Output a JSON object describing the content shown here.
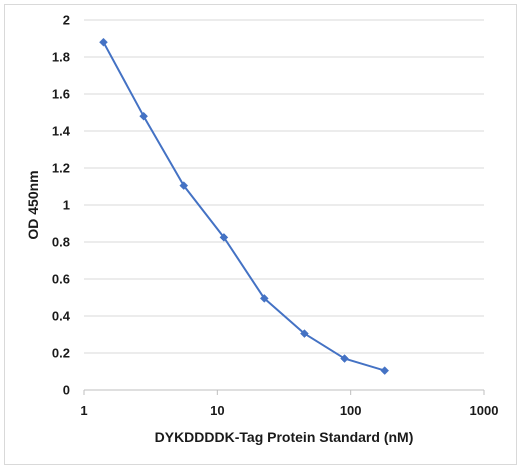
{
  "chart_data": {
    "type": "scatter",
    "title": "",
    "xlabel": "DYKDDDDK-Tag Protein Standard (nM)",
    "ylabel": "OD 450nm",
    "x_scale": "log",
    "xlim": [
      1,
      1000
    ],
    "ylim": [
      0,
      2
    ],
    "x_ticks": [
      "1",
      "10",
      "100",
      "1000"
    ],
    "x_tick_values": [
      1,
      10,
      100,
      1000
    ],
    "y_ticks": [
      "0",
      "0.2",
      "0.4",
      "0.6",
      "0.8",
      "1",
      "1.2",
      "1.4",
      "1.6",
      "1.8",
      "2"
    ],
    "y_tick_values": [
      0,
      0.2,
      0.4,
      0.6,
      0.8,
      1,
      1.2,
      1.4,
      1.6,
      1.8,
      2
    ],
    "grid": "horizontal",
    "legend": "none",
    "series": [
      {
        "x": [
          1.4,
          2.8,
          5.6,
          11.2,
          22.5,
          45,
          90,
          180
        ],
        "y": [
          1.88,
          1.48,
          1.105,
          0.825,
          0.495,
          0.305,
          0.17,
          0.105
        ],
        "color": "#4472c4",
        "marker": "diamond",
        "line": "straight"
      }
    ]
  }
}
